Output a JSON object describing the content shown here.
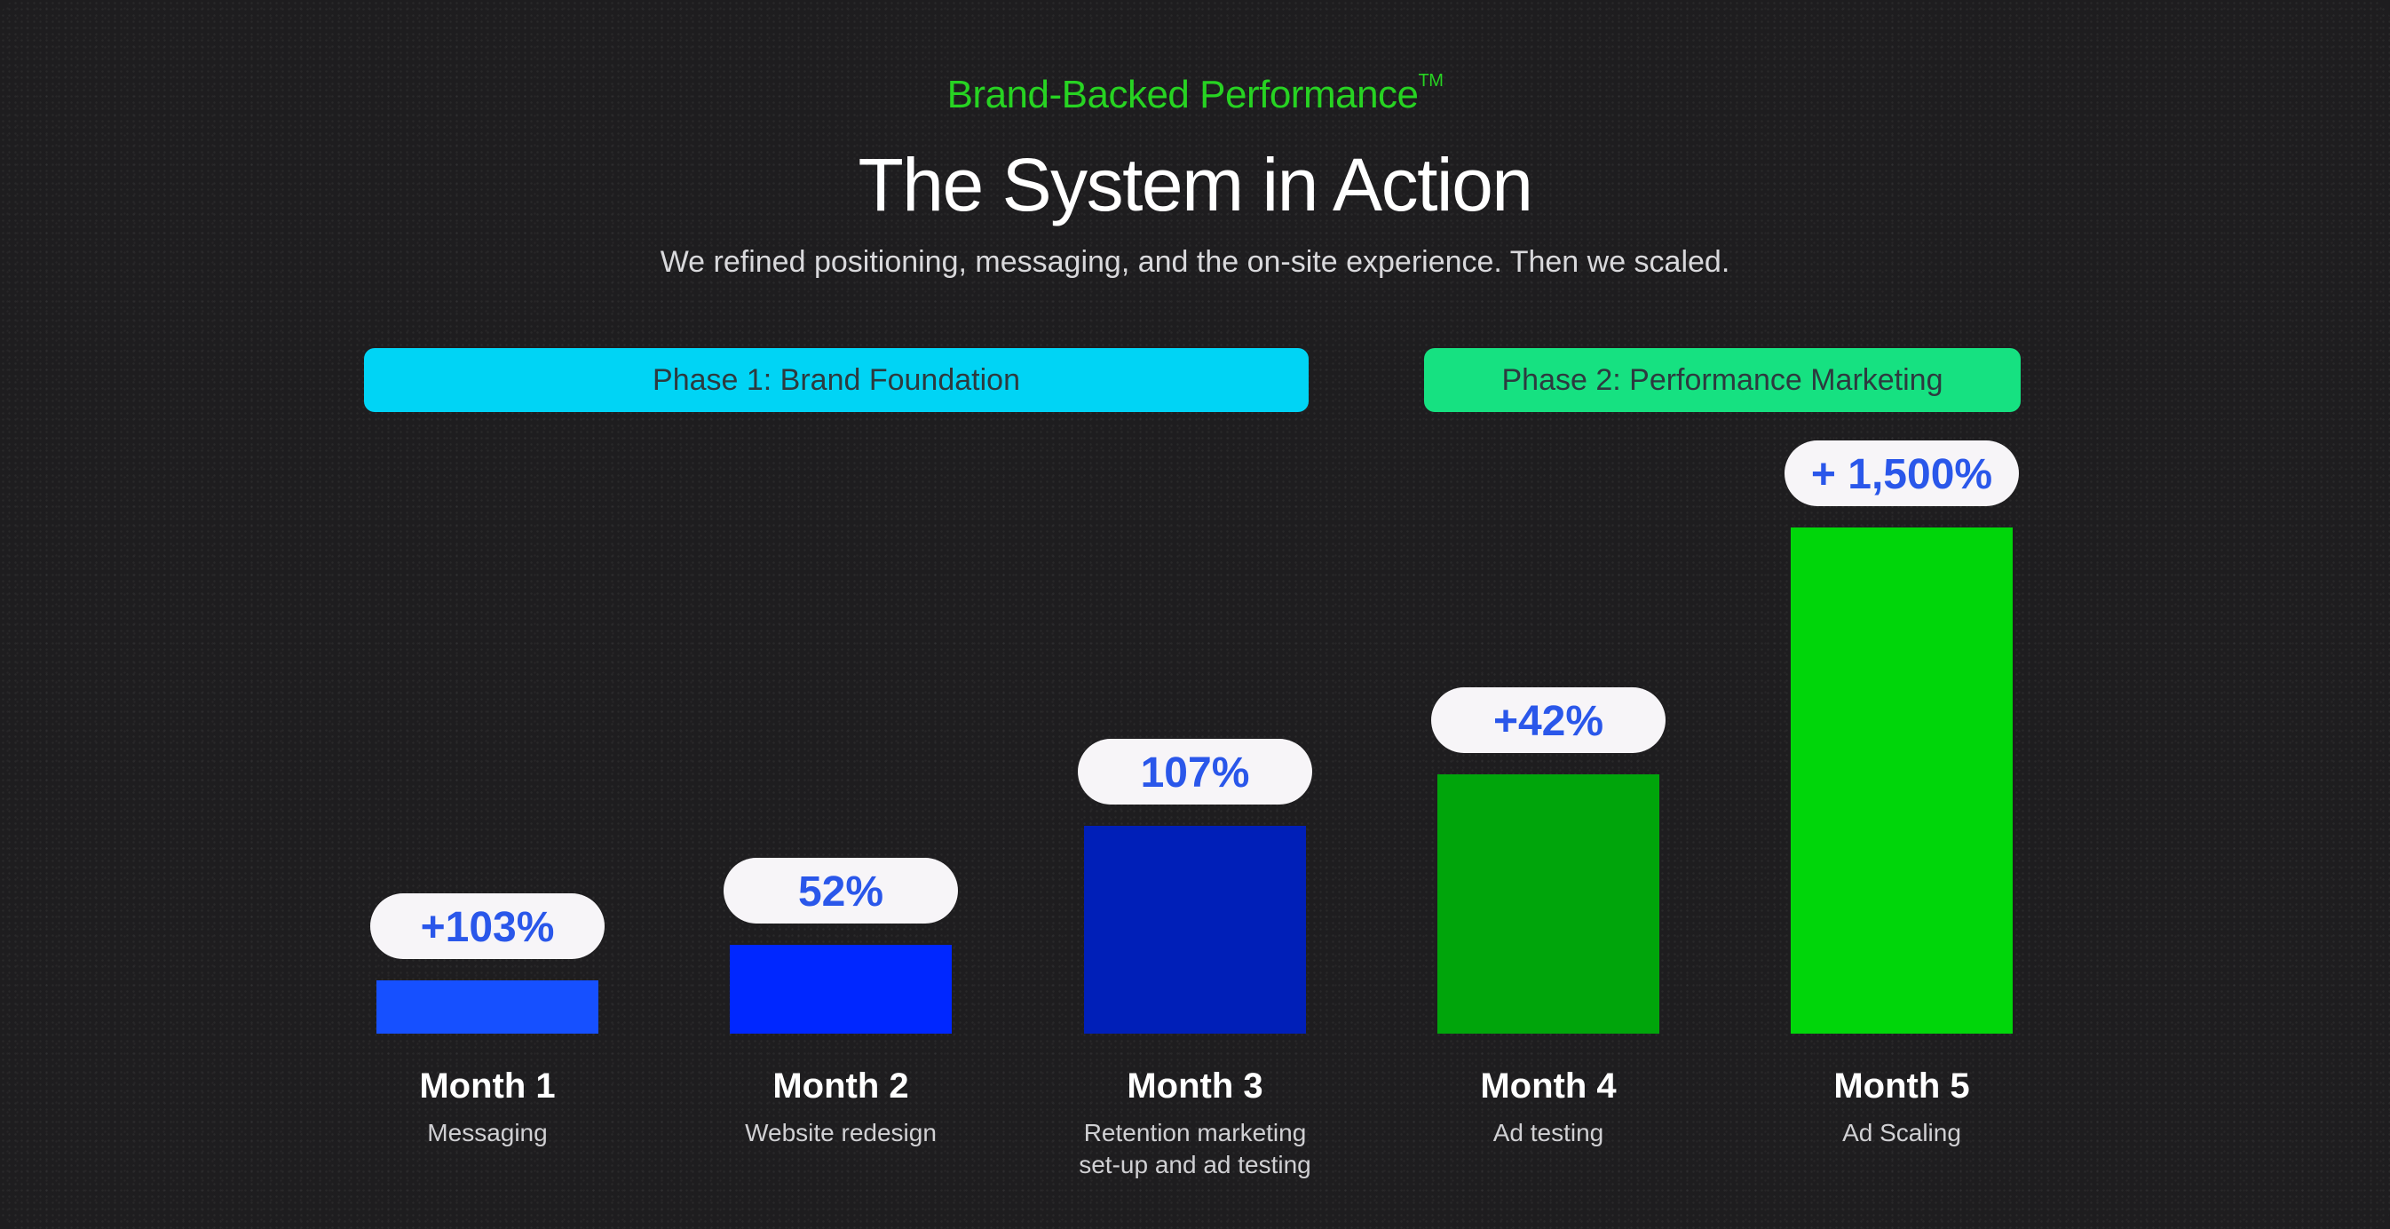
{
  "header": {
    "eyebrow": "Brand-Backed Performance",
    "eyebrow_mark": "TM",
    "title": "The System in Action",
    "subtitle": "We refined positioning, messaging, and the on-site experience. Then we scaled."
  },
  "phases": [
    {
      "label": "Phase 1: Brand Foundation",
      "color": "#00d4f5"
    },
    {
      "label": "Phase 2: Performance Marketing",
      "color": "#16e181"
    }
  ],
  "chart_data": {
    "type": "bar",
    "categories": [
      "Month 1",
      "Month 2",
      "Month 3",
      "Month 4",
      "Month 5"
    ],
    "descriptions": [
      [
        "Messaging"
      ],
      [
        "Website redesign"
      ],
      [
        "Retention marketing",
        "set-up and ad testing"
      ],
      [
        "Ad testing"
      ],
      [
        "Ad Scaling"
      ]
    ],
    "data_labels": [
      "+103%",
      "52%",
      "107%",
      "+42%",
      "+ 1,500%"
    ],
    "colors": [
      "#1650ff",
      "#0027ff",
      "#001fb8",
      "#00a50b",
      "#00d60a"
    ],
    "label_color": "#2a57ea",
    "phase_of_bar": [
      1,
      1,
      1,
      2,
      2
    ]
  }
}
